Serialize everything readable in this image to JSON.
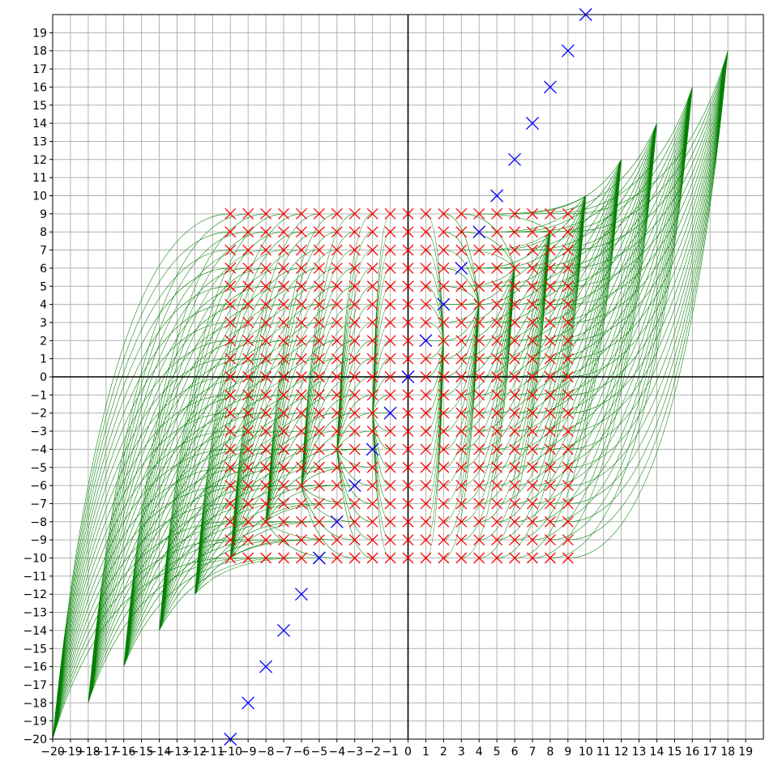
{
  "chart_data": {
    "type": "scatter",
    "title": "",
    "xlabel": "",
    "ylabel": "",
    "xlim": [
      -20,
      20
    ],
    "ylim": [
      -20,
      20
    ],
    "x_ticks": [
      -20,
      -19,
      -18,
      -17,
      -16,
      -15,
      -14,
      -13,
      -12,
      -11,
      -10,
      -9,
      -8,
      -7,
      -6,
      -5,
      -4,
      -3,
      -2,
      -1,
      0,
      1,
      2,
      3,
      4,
      5,
      6,
      7,
      8,
      9,
      10,
      11,
      12,
      13,
      14,
      15,
      16,
      17,
      18,
      19
    ],
    "y_ticks": [
      -20,
      -19,
      -18,
      -17,
      -16,
      -15,
      -14,
      -13,
      -12,
      -11,
      -10,
      -9,
      -8,
      -7,
      -6,
      -5,
      -4,
      -3,
      -2,
      -1,
      0,
      1,
      2,
      3,
      4,
      5,
      6,
      7,
      8,
      9,
      10,
      11,
      12,
      13,
      14,
      15,
      16,
      17,
      18,
      19
    ],
    "grid": true,
    "axes_through_origin": true,
    "series": [
      {
        "role": "source-grid",
        "marker": "x",
        "color": "#ff0000",
        "x_range": [
          -10,
          9
        ],
        "y_range": [
          -10,
          9
        ],
        "step": 1
      },
      {
        "role": "diagonal-points",
        "marker": "x",
        "color": "#0000ff",
        "x": [
          -10,
          -9,
          -8,
          -7,
          -6,
          -5,
          -4,
          -3,
          -2,
          -1,
          0,
          1,
          2,
          3,
          4,
          5,
          6,
          7,
          8,
          9,
          10
        ],
        "y": [
          -20,
          -18,
          -16,
          -14,
          -12,
          -10,
          -8,
          -6,
          -4,
          -2,
          0,
          2,
          4,
          6,
          8,
          10,
          12,
          14,
          16,
          18,
          20
        ]
      },
      {
        "role": "connecting-curves",
        "style": "line",
        "color": "#008000",
        "description_of_form": "each source point (x, y) connected by a smooth curve to target (2x, 2x)"
      }
    ]
  }
}
